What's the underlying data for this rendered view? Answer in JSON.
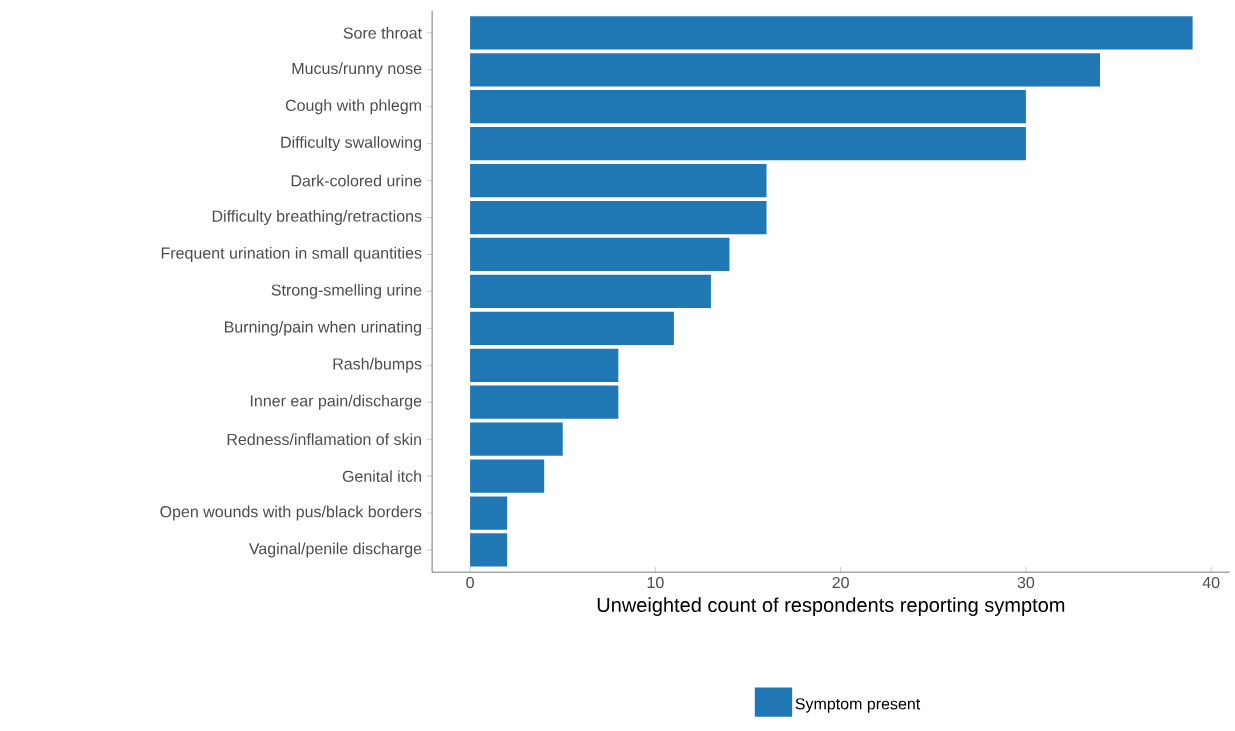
{
  "chart_data": {
    "type": "bar",
    "orientation": "horizontal",
    "categories": [
      "Sore throat",
      "Mucus/runny nose",
      "Cough with phlegm",
      "Difficulty swallowing",
      "Dark-colored urine",
      "Difficulty breathing/retractions",
      "Frequent urination in small quantities",
      "Strong-smelling urine",
      "Burning/pain when urinating",
      "Rash/bumps",
      "Inner ear pain/discharge",
      "Redness/inflamation of skin",
      "Genital itch",
      "Open wounds with pus/black borders",
      "Vaginal/penile discharge"
    ],
    "series": [
      {
        "name": "Symptom present",
        "color": "#1f78b4",
        "values": [
          39,
          34,
          30,
          30,
          16,
          16,
          14,
          13,
          11,
          8,
          8,
          5,
          4,
          2,
          2
        ]
      }
    ],
    "xlim": [
      -2.05,
      41
    ],
    "xticks": [
      0,
      10,
      20,
      30,
      40
    ],
    "xlabel": "Unweighted count of respondents reporting symptom",
    "legend": "bottom"
  }
}
